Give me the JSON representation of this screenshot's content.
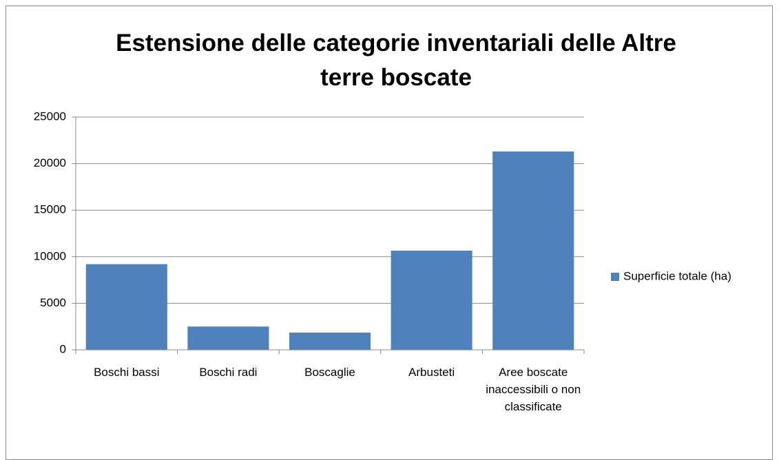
{
  "chart_data": {
    "type": "bar",
    "title": "Estensione delle categorie inventariali delle Altre terre boscate",
    "categories": [
      "Boschi bassi",
      "Boschi radi",
      "Boscaglie",
      "Arbusteti",
      "Aree boscate inaccessibili o non classificate"
    ],
    "series": [
      {
        "name": "Superficie totale (ha)",
        "color": "#4f81bd",
        "values": [
          9200,
          2500,
          1850,
          10650,
          21300
        ]
      }
    ],
    "ylim": [
      0,
      25000
    ],
    "yticks": [
      0,
      5000,
      10000,
      15000,
      20000,
      25000
    ],
    "grid": true,
    "legend": "right"
  }
}
